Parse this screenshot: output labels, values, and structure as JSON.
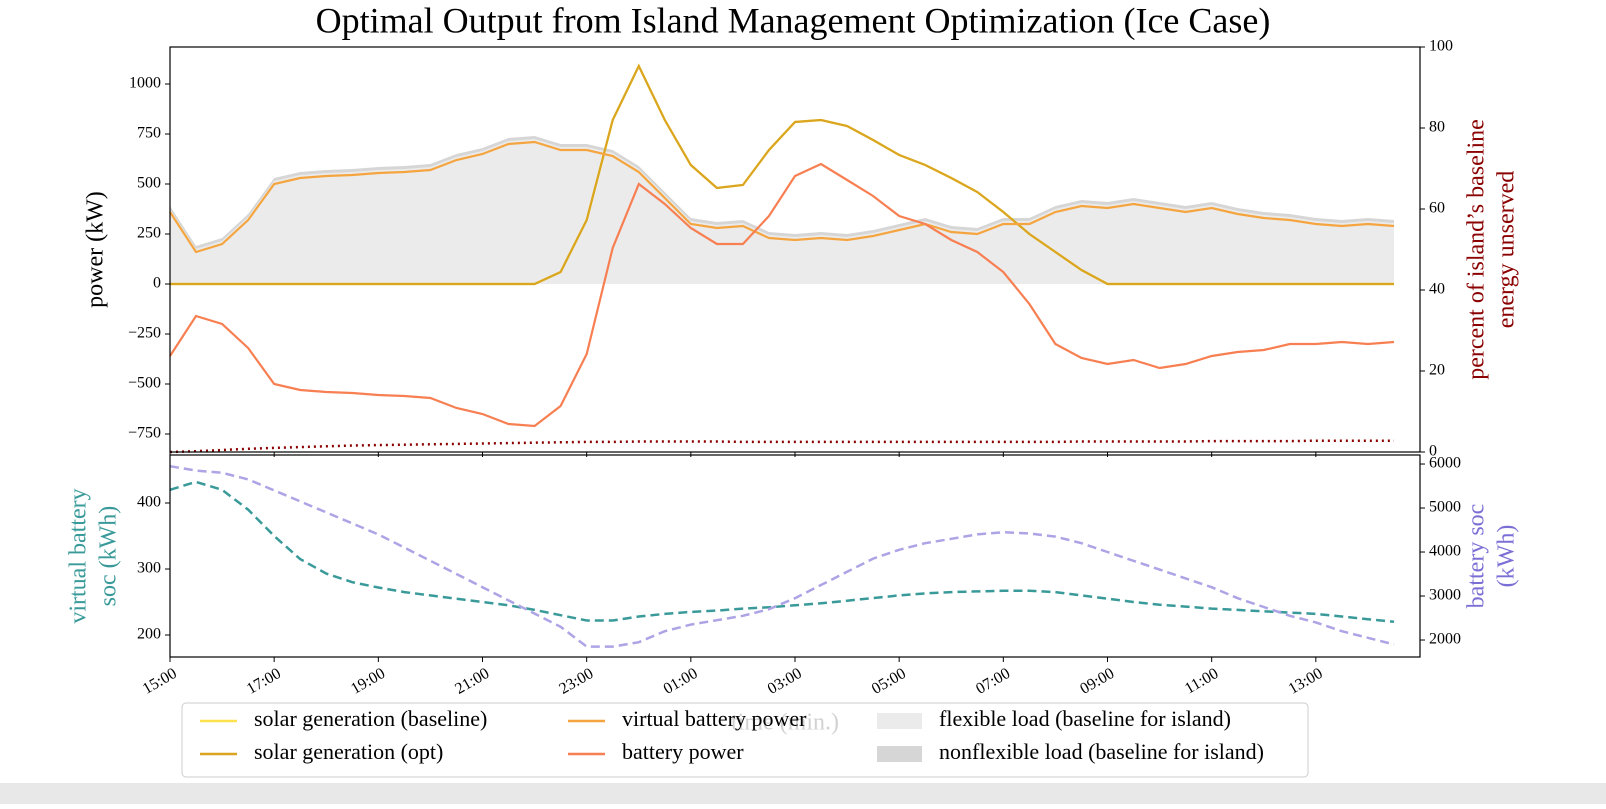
{
  "chart_data": {
    "type": "line",
    "title": "Optimal Output from Island Management Optimization (Ice Case)",
    "xlabel": "time (min.)",
    "x": [
      "15:00",
      "15:30",
      "16:00",
      "16:30",
      "17:00",
      "17:30",
      "18:00",
      "18:30",
      "19:00",
      "19:30",
      "20:00",
      "20:30",
      "21:00",
      "21:30",
      "22:00",
      "22:30",
      "23:00",
      "23:30",
      "00:00",
      "00:30",
      "01:00",
      "01:30",
      "02:00",
      "02:30",
      "03:00",
      "03:30",
      "04:00",
      "04:30",
      "05:00",
      "05:30",
      "06:00",
      "06:30",
      "07:00",
      "07:30",
      "08:00",
      "08:30",
      "09:00",
      "09:30",
      "10:00",
      "10:30",
      "11:00",
      "11:30",
      "12:00",
      "12:30",
      "13:00",
      "13:30",
      "14:00",
      "14:30"
    ],
    "xticks": [
      "15:00",
      "17:00",
      "19:00",
      "21:00",
      "23:00",
      "01:00",
      "03:00",
      "05:00",
      "07:00",
      "09:00",
      "11:00",
      "13:00"
    ],
    "panels": [
      {
        "ylabel": [
          "power (kW)"
        ],
        "ylim": [
          -840,
          1185
        ],
        "yticks": [
          {
            "value": -750,
            "label": "−750"
          },
          {
            "value": -500,
            "label": "−500"
          },
          {
            "value": -250,
            "label": "−250"
          },
          0,
          250,
          500,
          750,
          1000
        ],
        "y2label": [
          "percent of island’s baseline",
          "energy unserved"
        ],
        "y2color": "#8b0000",
        "y2lim": [
          0,
          100
        ],
        "y2ticks": [
          0,
          20,
          40,
          60,
          80,
          100
        ],
        "series": [
          {
            "name": "solar generation (baseline)",
            "color": "#ffe14d",
            "style": "line",
            "values": [
              0,
              0,
              0,
              0,
              0,
              0,
              0,
              0,
              0,
              0,
              0,
              0,
              0,
              0,
              0,
              60,
              320,
              820,
              1090,
              820,
              595,
              480,
              495,
              670,
              810,
              820,
              790,
              720,
              645,
              595,
              530,
              460,
              360,
              250,
              160,
              70,
              0,
              0,
              0,
              0,
              0,
              0,
              0,
              0,
              0,
              0,
              0,
              0
            ]
          },
          {
            "name": "solar generation (opt)",
            "color": "#daa520",
            "style": "line",
            "values": [
              0,
              0,
              0,
              0,
              0,
              0,
              0,
              0,
              0,
              0,
              0,
              0,
              0,
              0,
              0,
              60,
              320,
              820,
              1090,
              820,
              595,
              480,
              495,
              670,
              810,
              820,
              790,
              720,
              645,
              595,
              530,
              460,
              360,
              250,
              160,
              70,
              0,
              0,
              0,
              0,
              0,
              0,
              0,
              0,
              0,
              0,
              0,
              0
            ]
          },
          {
            "name": "virtual battery power",
            "color": "#f5a540",
            "style": "line",
            "values": [
              360,
              160,
              200,
              320,
              500,
              530,
              540,
              545,
              555,
              560,
              570,
              620,
              650,
              700,
              710,
              670,
              670,
              640,
              560,
              430,
              300,
              280,
              290,
              230,
              220,
              230,
              220,
              240,
              270,
              300,
              260,
              250,
              300,
              300,
              360,
              390,
              380,
              400,
              380,
              360,
              380,
              350,
              330,
              320,
              300,
              290,
              300,
              290
            ]
          },
          {
            "name": "battery power",
            "color": "#f77f52",
            "style": "line",
            "values": [
              -360,
              -160,
              -200,
              -320,
              -500,
              -530,
              -540,
              -545,
              -555,
              -560,
              -570,
              -620,
              -650,
              -700,
              -710,
              -610,
              -350,
              180,
              500,
              400,
              280,
              200,
              200,
              340,
              540,
              600,
              520,
              440,
              340,
              300,
              220,
              160,
              60,
              -100,
              -300,
              -370,
              -400,
              -380,
              -420,
              -400,
              -360,
              -340,
              -330,
              -300,
              -300,
              -290,
              -300,
              -290
            ]
          },
          {
            "name": "flexible load (baseline for island)",
            "color": "#ebebeb",
            "style": "area",
            "values": [
              375,
              175,
              215,
              335,
              515,
              545,
              555,
              560,
              570,
              575,
              585,
              635,
              665,
              715,
              725,
              685,
              685,
              655,
              575,
              445,
              315,
              295,
              305,
              245,
              235,
              245,
              235,
              255,
              285,
              315,
              275,
              265,
              315,
              315,
              375,
              405,
              395,
              415,
              395,
              375,
              395,
              365,
              345,
              335,
              315,
              305,
              315,
              305
            ]
          },
          {
            "name": "nonflexible load (baseline for island)",
            "color": "#d6d6d6",
            "style": "area",
            "values": [
              390,
              190,
              230,
              350,
              530,
              560,
              570,
              575,
              585,
              590,
              600,
              650,
              680,
              730,
              740,
              700,
              700,
              670,
              590,
              460,
              330,
              310,
              320,
              260,
              250,
              260,
              250,
              270,
              300,
              330,
              290,
              280,
              330,
              330,
              390,
              420,
              410,
              430,
              410,
              390,
              410,
              380,
              360,
              350,
              330,
              320,
              330,
              320
            ]
          },
          {
            "color": "#8b0000",
            "style": "dotted",
            "axis": "y2",
            "values": [
              0,
              0.2,
              0.5,
              0.8,
              1.0,
              1.2,
              1.4,
              1.6,
              1.7,
              1.8,
              1.9,
              2.0,
              2.1,
              2.2,
              2.3,
              2.4,
              2.5,
              2.5,
              2.6,
              2.6,
              2.6,
              2.6,
              2.5,
              2.5,
              2.5,
              2.5,
              2.5,
              2.5,
              2.5,
              2.5,
              2.5,
              2.5,
              2.5,
              2.5,
              2.5,
              2.6,
              2.6,
              2.6,
              2.6,
              2.6,
              2.7,
              2.7,
              2.7,
              2.7,
              2.8,
              2.8,
              2.8,
              2.8
            ]
          }
        ]
      },
      {
        "ylabel": [
          "virtual battery",
          "soc (kWh)"
        ],
        "ycolor": "#3a9a9a",
        "ylim": [
          166.7,
          472.7
        ],
        "yticks": [
          200,
          300,
          400
        ],
        "y2label": [
          "battery soc",
          "(kWh)"
        ],
        "y2color": "#7b6fd6",
        "y2lim": [
          1614,
          6205
        ],
        "y2ticks": [
          2000,
          3000,
          4000,
          5000,
          6000
        ],
        "series": [
          {
            "color": "#3a9a9a",
            "style": "dashed",
            "values": [
              420,
              432,
              420,
              390,
              350,
              315,
              293,
              280,
              272,
              265,
              260,
              255,
              250,
              245,
              238,
              230,
              222,
              222,
              228,
              232,
              235,
              237,
              240,
              242,
              245,
              248,
              252,
              256,
              260,
              263,
              265,
              266,
              267,
              267,
              265,
              260,
              255,
              250,
              246,
              243,
              240,
              238,
              236,
              234,
              232,
              228,
              224,
              220
            ]
          },
          {
            "color": "#ada4e6",
            "style": "dashed",
            "axis": "y2",
            "values": [
              5950,
              5850,
              5800,
              5650,
              5400,
              5150,
              4900,
              4650,
              4400,
              4100,
              3800,
              3500,
              3200,
              2900,
              2600,
              2300,
              1850,
              1850,
              1950,
              2200,
              2350,
              2450,
              2550,
              2700,
              2950,
              3250,
              3550,
              3850,
              4050,
              4200,
              4300,
              4400,
              4450,
              4420,
              4350,
              4200,
              4000,
              3800,
              3600,
              3400,
              3200,
              2950,
              2750,
              2550,
              2400,
              2200,
              2050,
              1900
            ]
          }
        ]
      }
    ]
  }
}
